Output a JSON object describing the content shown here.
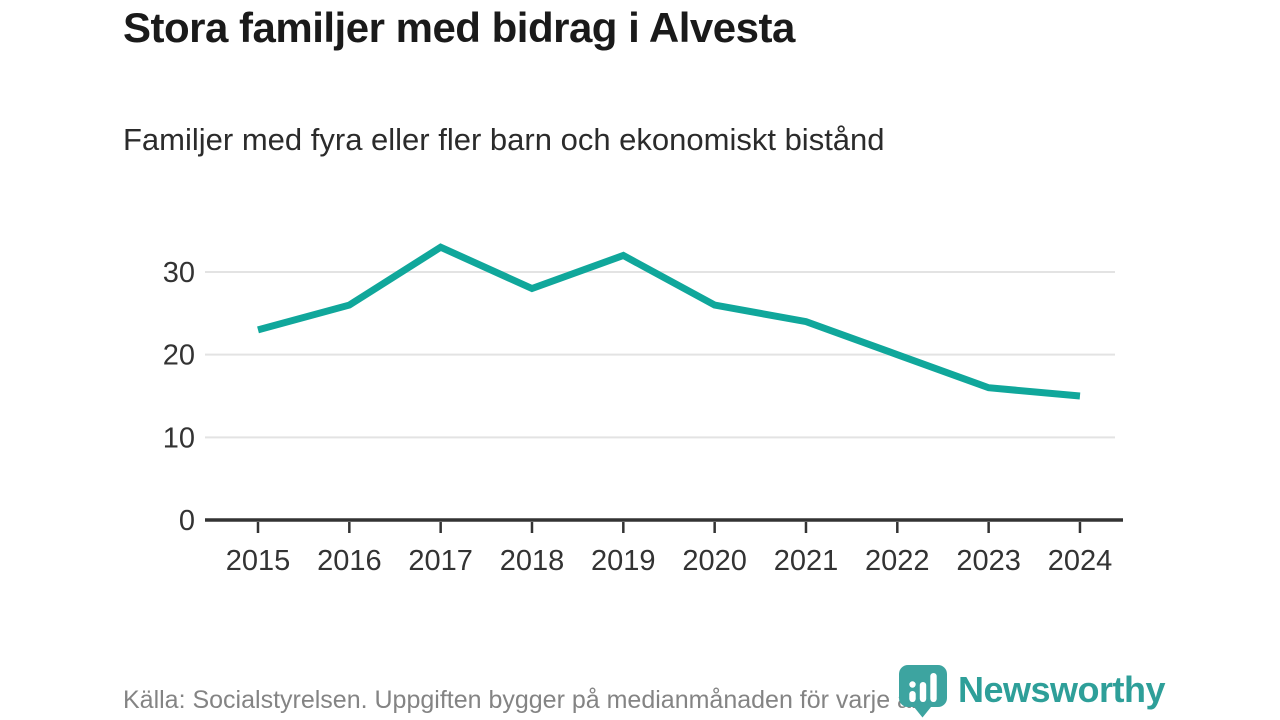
{
  "header": {
    "title": "Stora familjer med bidrag i Alvesta",
    "subtitle": "Familjer med fyra eller fler barn och ekonomiskt bistånd"
  },
  "chart_data": {
    "type": "line",
    "title": "Stora familjer med bidrag i Alvesta",
    "subtitle": "Familjer med fyra eller fler barn och ekonomiskt bistånd",
    "x": [
      2015,
      2016,
      2017,
      2018,
      2019,
      2020,
      2021,
      2022,
      2023,
      2024
    ],
    "series": [
      {
        "name": "Familjer med fyra eller fler barn och ekonomiskt bistånd",
        "values": [
          23,
          26,
          33,
          28,
          32,
          26,
          24,
          20,
          16,
          15
        ]
      }
    ],
    "xlabel": "",
    "ylabel": "",
    "ylim": [
      0,
      35
    ],
    "yticks": [
      0,
      10,
      20,
      30
    ],
    "grid": true,
    "legend_position": "none"
  },
  "footer": {
    "source": "Källa: Socialstyrelsen. Uppgiften bygger på medianmånaden för varje år",
    "brand": "Newsworthy"
  },
  "icons": {
    "brand_logo": "newsworthy-bubble-barchart-icon"
  },
  "colors": {
    "line": "#10a79b",
    "brand": "#2e9f99",
    "brand_icon": "#3da4a0",
    "axis": "#333333",
    "grid": "#e3e3e3",
    "tick_text": "#333333",
    "title_text": "#1a1a1a",
    "muted_text": "#848484"
  }
}
